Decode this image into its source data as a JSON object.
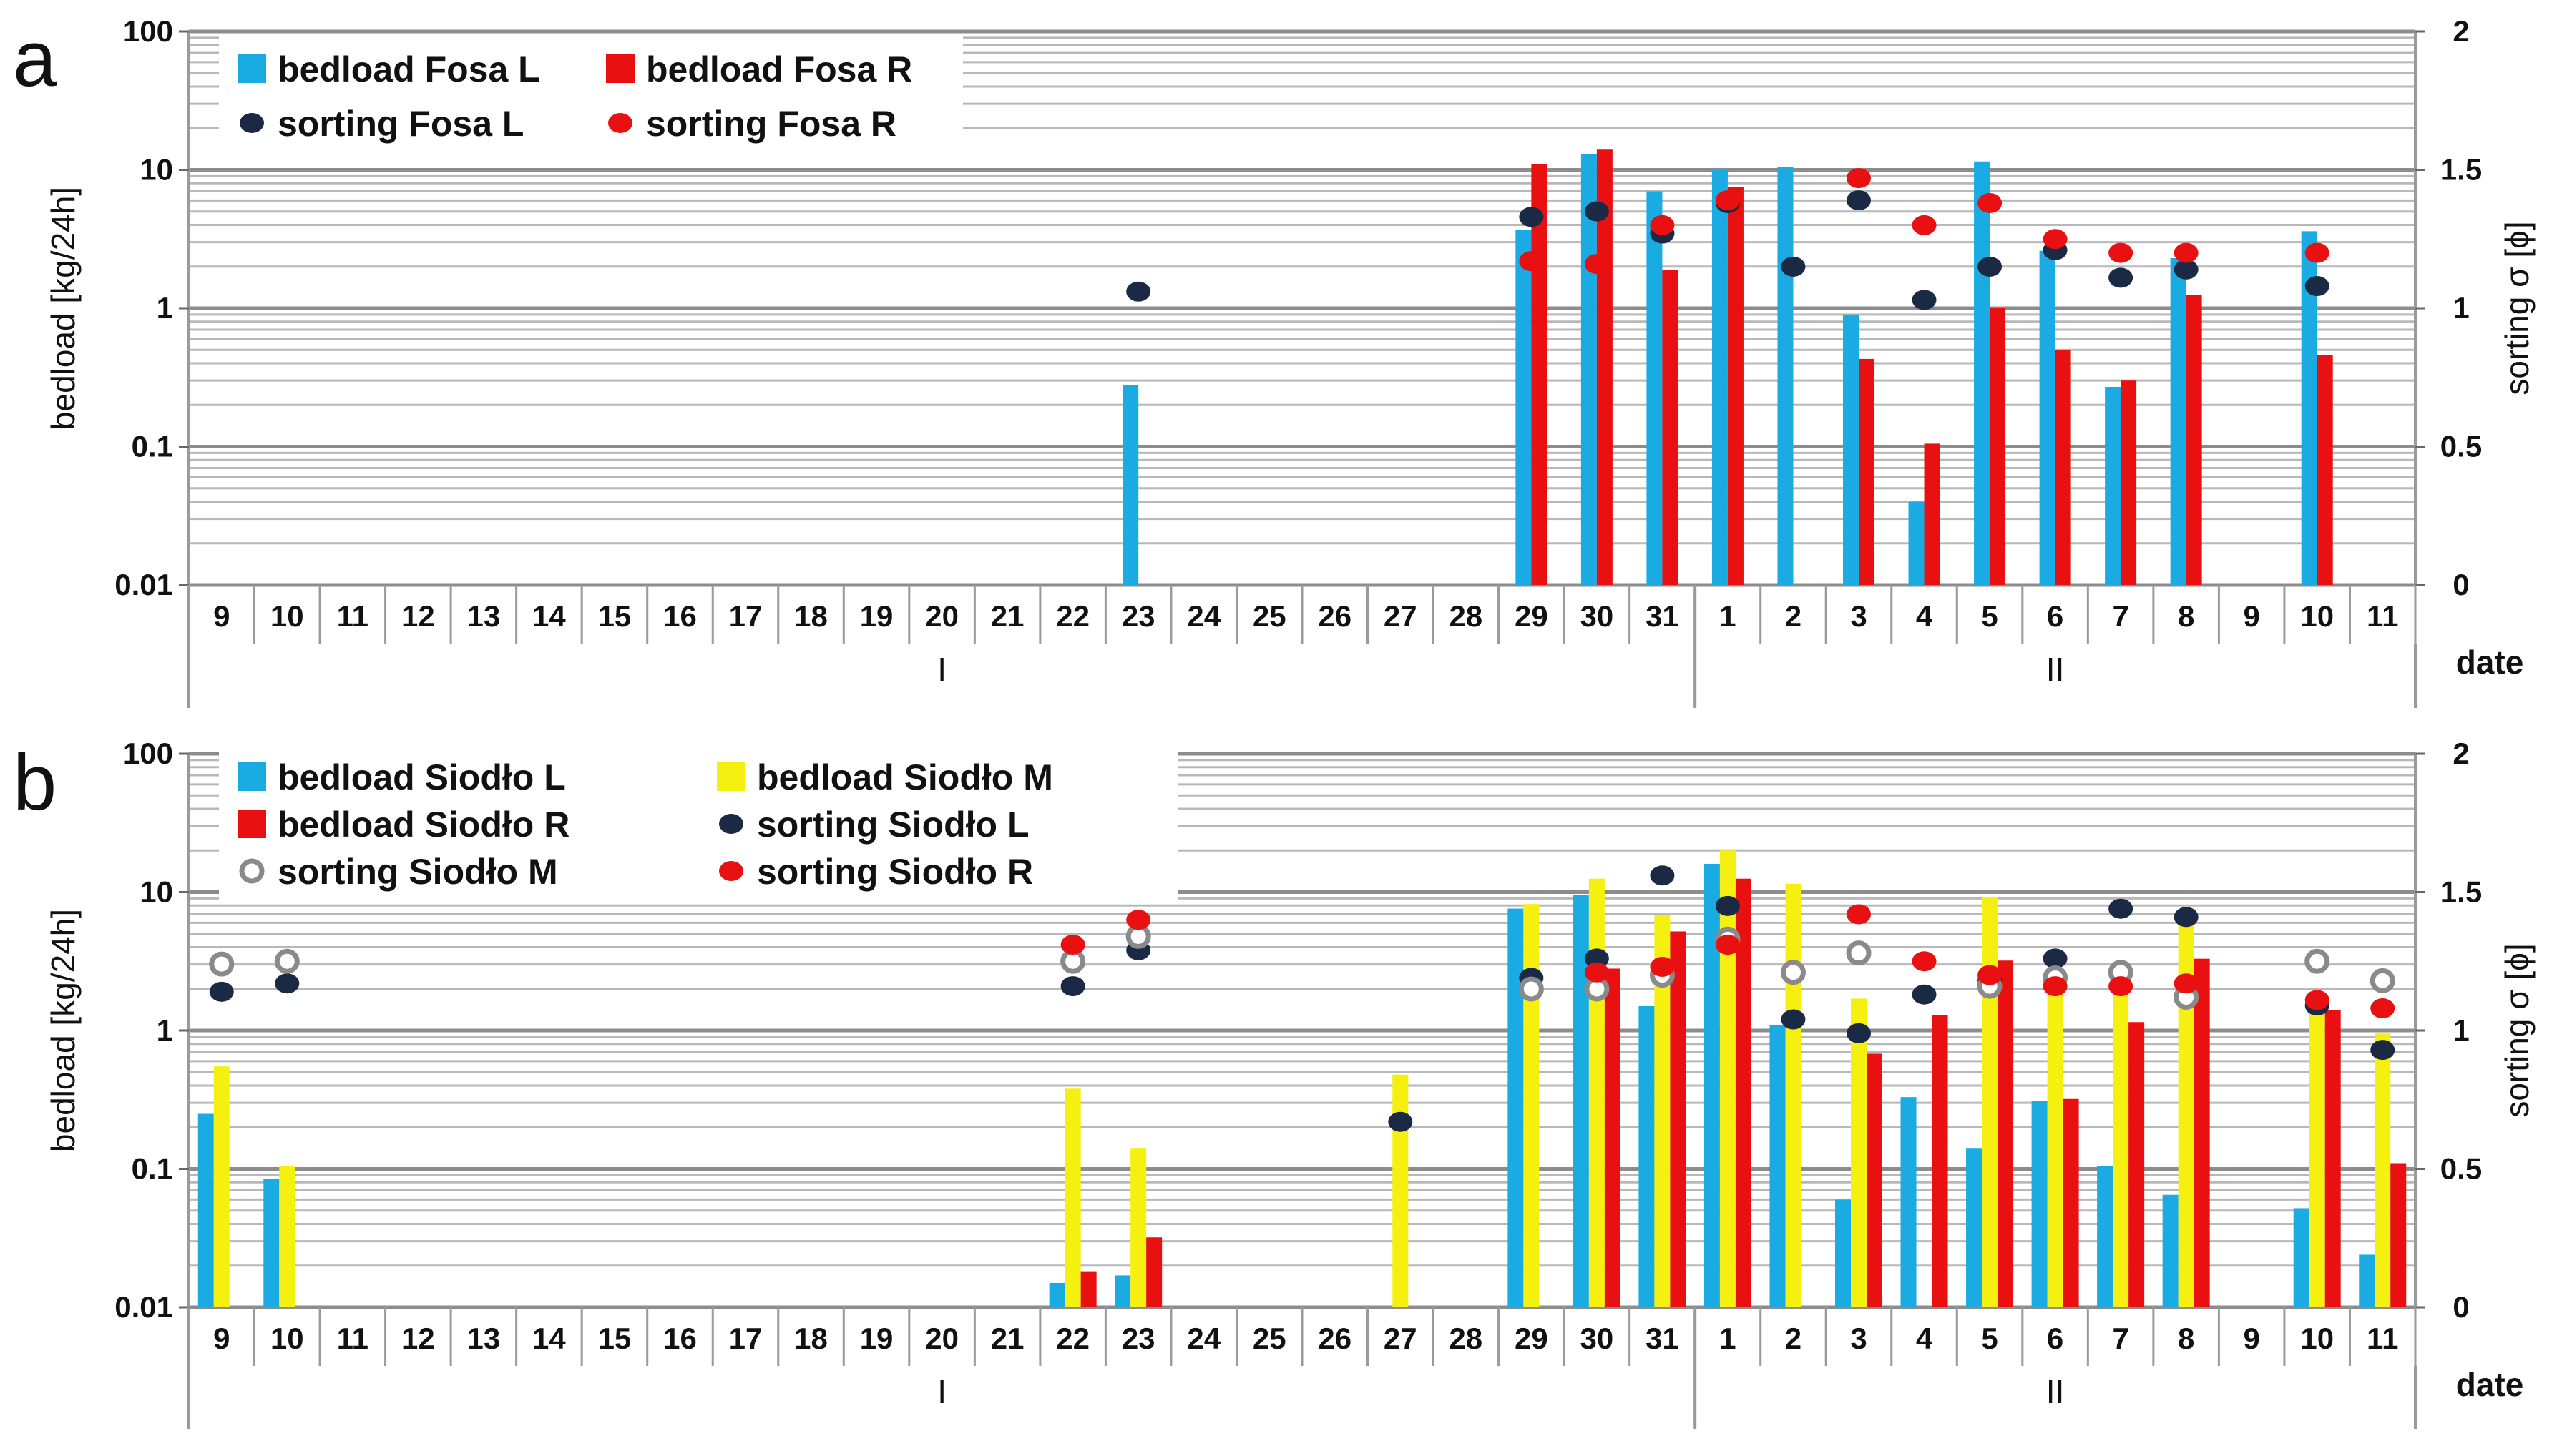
{
  "chart_data": [
    {
      "id": "a",
      "panel_label": "a",
      "type": "bar+scatter",
      "left_axis": {
        "label": "bedload [kg/24h]",
        "scale": "log",
        "range": [
          0.01,
          100
        ],
        "ticks": [
          "0.01",
          "0.1",
          "1",
          "10",
          "100"
        ]
      },
      "right_axis": {
        "label": "sorting σ [ϕ]",
        "range": [
          0,
          2
        ],
        "ticks": [
          "0",
          "0.5",
          "1",
          "1.5",
          "2"
        ]
      },
      "x_axis": {
        "label": "date",
        "categories": [
          "9",
          "10",
          "11",
          "12",
          "13",
          "14",
          "15",
          "16",
          "17",
          "18",
          "19",
          "20",
          "21",
          "22",
          "23",
          "24",
          "25",
          "26",
          "27",
          "28",
          "29",
          "30",
          "31",
          "1",
          "2",
          "3",
          "4",
          "5",
          "6",
          "7",
          "8",
          "9",
          "10",
          "11"
        ]
      },
      "months": [
        {
          "label": "I",
          "from": 0,
          "to": 22
        },
        {
          "label": "II",
          "from": 23,
          "to": 33
        }
      ],
      "legend_placement": "top-left",
      "grid": true,
      "bar_series": [
        {
          "name": "bedload Fosa L",
          "color": "#1aabe3",
          "values": [
            null,
            null,
            null,
            null,
            null,
            null,
            null,
            null,
            null,
            null,
            null,
            null,
            null,
            null,
            0.28,
            null,
            null,
            null,
            null,
            null,
            3.7,
            13,
            7,
            10,
            10.5,
            0.9,
            0.04,
            11.5,
            2.6,
            0.27,
            2.3,
            null,
            3.6,
            null
          ]
        },
        {
          "name": "bedload Fosa R",
          "color": "#e81010",
          "values": [
            null,
            null,
            null,
            null,
            null,
            null,
            null,
            null,
            null,
            null,
            null,
            null,
            null,
            null,
            null,
            null,
            null,
            null,
            null,
            null,
            11,
            14,
            1.9,
            7.5,
            null,
            0.43,
            0.105,
            1.0,
            0.5,
            0.3,
            1.25,
            null,
            0.46,
            null
          ]
        }
      ],
      "scatter_series": [
        {
          "name": "sorting Fosa L",
          "color": "#1b2a44",
          "marker": "filled",
          "values": [
            null,
            null,
            null,
            null,
            null,
            null,
            null,
            null,
            null,
            null,
            null,
            null,
            null,
            null,
            1.06,
            null,
            null,
            null,
            null,
            null,
            1.33,
            1.35,
            1.27,
            1.38,
            1.15,
            1.39,
            1.03,
            1.15,
            1.21,
            1.11,
            1.14,
            null,
            1.08,
            null
          ]
        },
        {
          "name": "sorting Fosa R",
          "color": "#e81010",
          "marker": "filled",
          "values": [
            null,
            null,
            null,
            null,
            null,
            null,
            null,
            null,
            null,
            null,
            null,
            null,
            null,
            null,
            null,
            null,
            null,
            null,
            null,
            null,
            1.17,
            1.16,
            1.3,
            1.39,
            null,
            1.47,
            1.3,
            1.38,
            1.25,
            1.2,
            1.2,
            null,
            1.2,
            null
          ]
        }
      ]
    },
    {
      "id": "b",
      "panel_label": "b",
      "type": "bar+scatter",
      "left_axis": {
        "label": "bedload [kg/24h]",
        "scale": "log",
        "range": [
          0.01,
          100
        ],
        "ticks": [
          "0.01",
          "0.1",
          "1",
          "10",
          "100"
        ]
      },
      "right_axis": {
        "label": "sorting σ [ϕ]",
        "range": [
          0,
          2
        ],
        "ticks": [
          "0",
          "0.5",
          "1",
          "1.5",
          "2"
        ]
      },
      "x_axis": {
        "label": "date",
        "categories": [
          "9",
          "10",
          "11",
          "12",
          "13",
          "14",
          "15",
          "16",
          "17",
          "18",
          "19",
          "20",
          "21",
          "22",
          "23",
          "24",
          "25",
          "26",
          "27",
          "28",
          "29",
          "30",
          "31",
          "1",
          "2",
          "3",
          "4",
          "5",
          "6",
          "7",
          "8",
          "9",
          "10",
          "11"
        ]
      },
      "months": [
        {
          "label": "I",
          "from": 0,
          "to": 22
        },
        {
          "label": "II",
          "from": 23,
          "to": 33
        }
      ],
      "legend_placement": "top-left",
      "grid": true,
      "bar_series": [
        {
          "name": "bedload Siodło L",
          "color": "#1aabe3",
          "values": [
            0.25,
            0.085,
            null,
            null,
            null,
            null,
            null,
            null,
            null,
            null,
            null,
            null,
            null,
            0.015,
            0.017,
            null,
            null,
            null,
            null,
            null,
            7.6,
            9.5,
            1.5,
            16,
            1.1,
            0.06,
            0.33,
            0.14,
            0.31,
            0.105,
            0.065,
            null,
            0.052,
            0.024
          ]
        },
        {
          "name": "bedload Siodło M",
          "color": "#f5f010",
          "values": [
            0.55,
            0.105,
            null,
            null,
            null,
            null,
            null,
            null,
            null,
            null,
            null,
            null,
            null,
            0.38,
            0.14,
            null,
            null,
            null,
            0.48,
            null,
            8.2,
            12.5,
            6.8,
            20,
            11.5,
            1.7,
            null,
            9.2,
            2.1,
            3.0,
            7.0,
            null,
            1.6,
            0.95
          ]
        },
        {
          "name": "bedload Siodło R",
          "color": "#e81010",
          "values": [
            null,
            null,
            null,
            null,
            null,
            null,
            null,
            null,
            null,
            null,
            null,
            null,
            null,
            0.018,
            0.032,
            null,
            null,
            null,
            null,
            null,
            null,
            2.8,
            5.2,
            12.5,
            null,
            0.68,
            1.3,
            3.2,
            0.32,
            1.15,
            3.3,
            null,
            1.4,
            0.11
          ]
        }
      ],
      "scatter_series": [
        {
          "name": "sorting Siodło L",
          "color": "#1b2a44",
          "marker": "filled",
          "values": [
            1.14,
            1.17,
            null,
            null,
            null,
            null,
            null,
            null,
            null,
            null,
            null,
            null,
            null,
            1.16,
            1.29,
            null,
            null,
            null,
            0.67,
            null,
            1.19,
            1.26,
            1.56,
            1.45,
            1.04,
            0.99,
            1.13,
            1.18,
            1.26,
            1.44,
            1.41,
            null,
            1.09,
            0.93
          ]
        },
        {
          "name": "sorting Siodło M",
          "color": "#8a8a8a",
          "marker": "hollow",
          "values": [
            1.24,
            1.25,
            null,
            null,
            null,
            null,
            null,
            null,
            null,
            null,
            null,
            null,
            null,
            1.25,
            1.34,
            null,
            null,
            null,
            null,
            null,
            1.15,
            1.15,
            1.2,
            1.33,
            1.21,
            1.28,
            null,
            1.16,
            1.19,
            1.21,
            1.12,
            null,
            1.25,
            1.18
          ]
        },
        {
          "name": "sorting Siodło R",
          "color": "#e81010",
          "marker": "filled",
          "values": [
            null,
            null,
            null,
            null,
            null,
            null,
            null,
            null,
            null,
            null,
            null,
            null,
            null,
            1.31,
            1.4,
            null,
            null,
            null,
            null,
            null,
            null,
            1.21,
            1.23,
            1.31,
            null,
            1.42,
            1.25,
            1.2,
            1.16,
            1.16,
            1.17,
            null,
            1.11,
            1.08
          ]
        }
      ]
    }
  ]
}
